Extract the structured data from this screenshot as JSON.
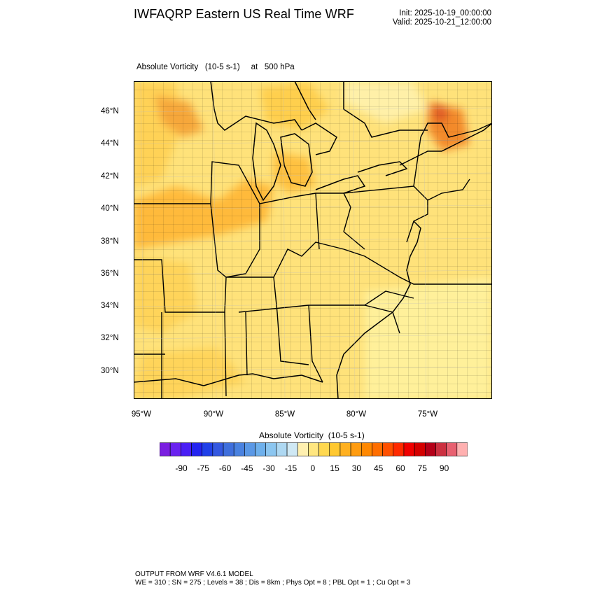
{
  "header": {
    "title": "IWFAQRP Eastern US Real Time WRF",
    "init": "Init: 2025-10-19_00:00:00",
    "valid": "Valid: 2025-10-21_12:00:00"
  },
  "field": {
    "name": "Absolute Vorticity",
    "units": "(10-5 s-1)",
    "level_prefix": "at",
    "level": "500 hPa"
  },
  "axes": {
    "lat_labels": [
      "46°N",
      "44°N",
      "42°N",
      "40°N",
      "38°N",
      "36°N",
      "34°N",
      "32°N",
      "30°N"
    ],
    "lon_labels": [
      "95°W",
      "90°W",
      "85°W",
      "80°W",
      "75°W"
    ]
  },
  "colorbar": {
    "title": "Absolute Vorticity  (10-5 s-1)",
    "labels": [
      "-90",
      "-75",
      "-60",
      "-45",
      "-30",
      "-15",
      "0",
      "15",
      "30",
      "45",
      "60",
      "75",
      "90"
    ],
    "colors": [
      "#7a1fe0",
      "#6a22f0",
      "#4a1ef5",
      "#2424f0",
      "#2040e8",
      "#3458e0",
      "#3f6fdc",
      "#4a82e0",
      "#5a98e6",
      "#6eb0ec",
      "#8cc6f0",
      "#aed8f2",
      "#cfe8f4",
      "#fff0b0",
      "#ffe680",
      "#ffd850",
      "#ffc830",
      "#ffb020",
      "#ff9c10",
      "#ff8800",
      "#ff6e00",
      "#ff5000",
      "#ff2a00",
      "#f00000",
      "#d40000",
      "#b40018",
      "#cc3040",
      "#e86070",
      "#ffb0b0"
    ]
  },
  "footer": {
    "line1": "OUTPUT FROM WRF V4.6.1 MODEL",
    "line2": "WE = 310 ; SN = 275 ; Levels = 38 ; Dis = 8km ; Phys Opt = 8 ; PBL Opt = 1 ; Cu Opt = 3"
  }
}
